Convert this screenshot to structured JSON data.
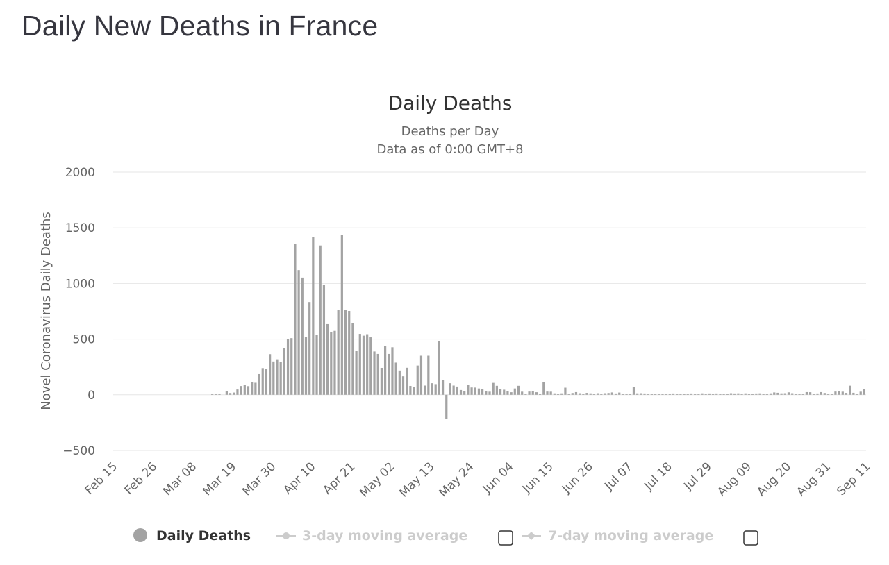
{
  "page": {
    "title": "Daily New Deaths in France"
  },
  "colors": {
    "bar": "#a3a3a3",
    "grid": "#e6e6e6",
    "legend_disabled": "#cccccc"
  },
  "legend": {
    "items": [
      {
        "label": "Daily Deaths",
        "enabled": true,
        "icon": "circle-marker-icon"
      },
      {
        "label": "3-day moving average",
        "enabled": false,
        "icon": "line-circle-marker-icon"
      },
      {
        "label": "7-day moving average",
        "enabled": false,
        "icon": "line-diamond-marker-icon"
      }
    ]
  },
  "chart_data": {
    "type": "bar",
    "title": "Daily Deaths",
    "subtitle": [
      "Deaths per Day",
      "Data as of 0:00 GMT+8"
    ],
    "ylabel": "Novel Coronavirus Daily Deaths",
    "xlabel": "",
    "ylim": [
      -500,
      2000
    ],
    "yticks": [
      -500,
      0,
      500,
      1000,
      1500,
      2000
    ],
    "grid": true,
    "legend_position": "bottom",
    "x_tick_labels": [
      "Feb 15",
      "Feb 26",
      "Mar 08",
      "Mar 19",
      "Mar 30",
      "Apr 10",
      "Apr 21",
      "May 02",
      "May 13",
      "May 24",
      "Jun 04",
      "Jun 15",
      "Jun 26",
      "Jul 07",
      "Jul 18",
      "Jul 29",
      "Aug 09",
      "Aug 20",
      "Aug 31",
      "Sep 11"
    ],
    "x_start": "Feb 15",
    "series": [
      {
        "name": "Daily Deaths",
        "values": [
          0,
          0,
          0,
          0,
          0,
          0,
          0,
          0,
          0,
          0,
          0,
          0,
          0,
          0,
          0,
          0,
          0,
          0,
          0,
          0,
          0,
          0,
          0,
          0,
          0,
          0,
          0,
          9,
          7,
          9,
          0,
          32,
          16,
          20,
          48,
          79,
          91,
          78,
          112,
          108,
          186,
          240,
          231,
          365,
          299,
          319,
          292,
          418,
          499,
          509,
          1355,
          1120,
          1053,
          518,
          833,
          1417,
          541,
          1341,
          987,
          635,
          561,
          574,
          762,
          1438,
          762,
          753,
          642,
          395,
          547,
          531,
          544,
          516,
          389,
          367,
          242,
          437,
          367,
          427,
          289,
          218,
          166,
          243,
          80,
          70,
          263,
          351,
          83,
          351,
          104,
          96,
          483,
          131,
          -217,
          104,
          83,
          74,
          43,
          35,
          90,
          66,
          65,
          57,
          52,
          31,
          28,
          107,
          81,
          52,
          46,
          31,
          23,
          57,
          81,
          28,
          9,
          29,
          31,
          23,
          9,
          111,
          29,
          28,
          13,
          9,
          13,
          64,
          9,
          16,
          24,
          14,
          9,
          17,
          13,
          11,
          14,
          9,
          14,
          16,
          21,
          12,
          20,
          9,
          11,
          9,
          72,
          13,
          14,
          12,
          9,
          9,
          9,
          10,
          9,
          9,
          9,
          12,
          9,
          9,
          9,
          9,
          12,
          11,
          10,
          13,
          9,
          12,
          9,
          12,
          9,
          9,
          9,
          14,
          12,
          13,
          11,
          13,
          9,
          10,
          12,
          13,
          11,
          9,
          13,
          21,
          18,
          13,
          14,
          22,
          14,
          9,
          9,
          9,
          24,
          23,
          9,
          12,
          24,
          16,
          9,
          9,
          29,
          35,
          28,
          17,
          82,
          18,
          11,
          28,
          54
        ]
      }
    ]
  }
}
